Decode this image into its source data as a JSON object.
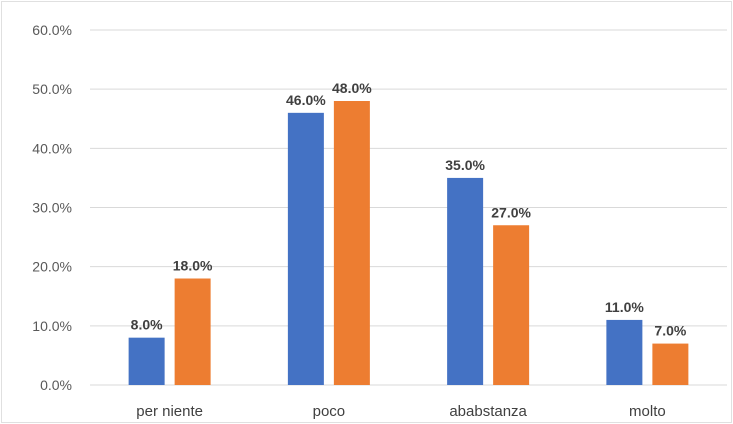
{
  "chart_data": {
    "type": "bar",
    "title": "",
    "xlabel": "",
    "ylabel": "",
    "categories": [
      "per niente",
      "poco",
      "ababstanza",
      "molto"
    ],
    "series": [
      {
        "values": [
          8.0,
          46.0,
          35.0,
          11.0
        ],
        "labels": [
          "8.0%",
          "46.0%",
          "35.0%",
          "11.0%"
        ],
        "color": "#4472C4"
      },
      {
        "values": [
          18.0,
          48.0,
          27.0,
          7.0
        ],
        "labels": [
          "18.0%",
          "48.0%",
          "27.0%",
          "7.0%"
        ],
        "color": "#ED7D31"
      }
    ],
    "ylim": [
      0,
      60
    ],
    "yticks": [
      0,
      10,
      20,
      30,
      40,
      50,
      60
    ],
    "ytick_labels": [
      "0.0%",
      "10.0%",
      "20.0%",
      "30.0%",
      "40.0%",
      "50.0%",
      "60.0%"
    ],
    "grid": true,
    "legend": "none",
    "gridline_color": "#D9D9D9"
  }
}
